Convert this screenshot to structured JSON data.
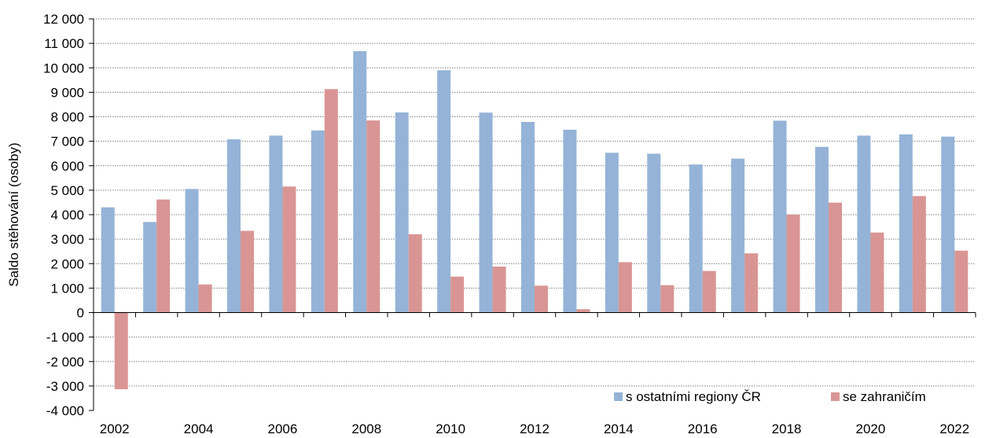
{
  "chart_data": {
    "type": "bar",
    "title": "",
    "xlabel": "",
    "ylabel": "Saldo stěhování (osoby)",
    "ylim": [
      -4000,
      12000
    ],
    "y_ticks": [
      "-4 000",
      "-3 000",
      "-2 000",
      "-1 000",
      "0",
      "1 000",
      "2 000",
      "3 000",
      "4 000",
      "5 000",
      "6 000",
      "7 000",
      "8 000",
      "9 000",
      "10 000",
      "11 000",
      "12 000"
    ],
    "categories": [
      "2002",
      "2003",
      "2004",
      "2005",
      "2006",
      "2007",
      "2008",
      "2009",
      "2010",
      "2011",
      "2012",
      "2013",
      "2014",
      "2015",
      "2016",
      "2017",
      "2018",
      "2019",
      "2020",
      "2021",
      "2022"
    ],
    "x_tick_labels": [
      "2002",
      "2004",
      "2006",
      "2008",
      "2010",
      "2012",
      "2014",
      "2016",
      "2018",
      "2020",
      "2022"
    ],
    "grid": "horizontal",
    "legend_position": "bottom-right",
    "series": [
      {
        "name": "s ostatními regiony ČR",
        "color": "#95b3d7",
        "values": [
          4300,
          3700,
          5050,
          7080,
          7230,
          7440,
          10680,
          8180,
          9900,
          8170,
          7790,
          7470,
          6530,
          6490,
          6050,
          6290,
          7840,
          6770,
          7230,
          7280,
          7190
        ]
      },
      {
        "name": "se zahraničím",
        "color": "#d99594",
        "values": [
          -3130,
          4620,
          1150,
          3340,
          5150,
          9130,
          7850,
          3200,
          1470,
          1880,
          1100,
          140,
          2060,
          1120,
          1700,
          2420,
          4000,
          4490,
          3270,
          4760,
          2530
        ]
      }
    ]
  }
}
